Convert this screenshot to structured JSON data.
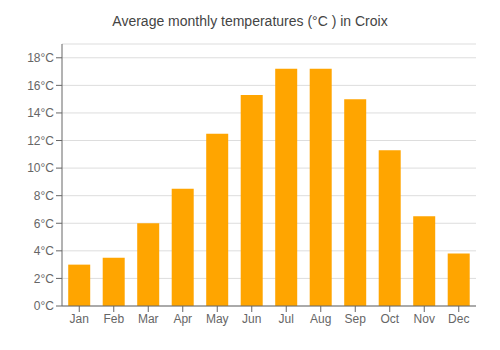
{
  "chart_data": {
    "type": "bar",
    "title": "Average monthly temperatures (°C ) in Croix",
    "categories": [
      "Jan",
      "Feb",
      "Mar",
      "Apr",
      "May",
      "Jun",
      "Jul",
      "Aug",
      "Sep",
      "Oct",
      "Nov",
      "Dec"
    ],
    "values": [
      3.0,
      3.5,
      6.0,
      8.5,
      12.5,
      15.3,
      17.2,
      17.2,
      15.0,
      11.3,
      6.5,
      3.8
    ],
    "color": "#FFA500",
    "ylim": [
      0,
      19
    ],
    "yticks": [
      {
        "value": 0,
        "label": "0°C"
      },
      {
        "value": 2,
        "label": "2°C"
      },
      {
        "value": 4,
        "label": "4°C"
      },
      {
        "value": 6,
        "label": "6°C"
      },
      {
        "value": 8,
        "label": "8°C"
      },
      {
        "value": 10,
        "label": "10°C"
      },
      {
        "value": 12,
        "label": "12°C"
      },
      {
        "value": 14,
        "label": "14°C"
      },
      {
        "value": 16,
        "label": "16°C"
      },
      {
        "value": 18,
        "label": "18°C"
      }
    ],
    "grid": true
  }
}
